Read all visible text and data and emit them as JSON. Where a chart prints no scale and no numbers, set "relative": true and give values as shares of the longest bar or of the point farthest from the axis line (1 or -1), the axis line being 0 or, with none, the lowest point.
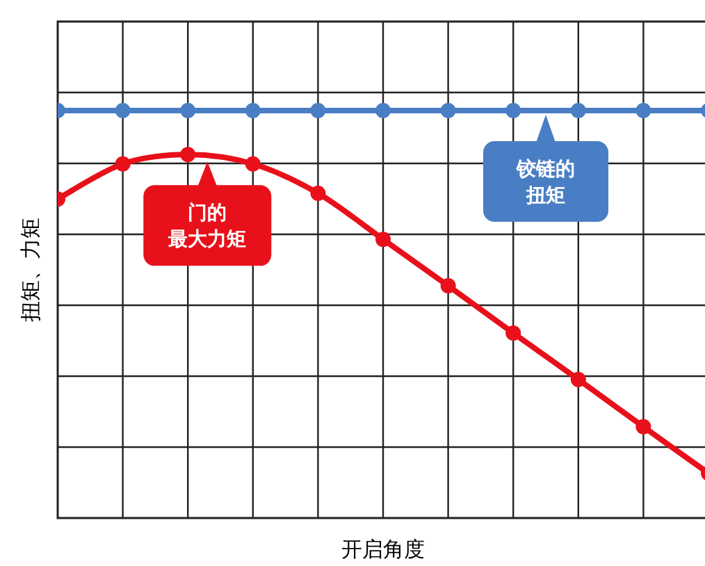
{
  "chart_data": {
    "type": "line",
    "relative": true,
    "xlabel": "开启角度",
    "ylabel": "扭矩、力矩",
    "categories": [
      null,
      null,
      null,
      null,
      null,
      null,
      null,
      null,
      null,
      null,
      null
    ],
    "grid": true,
    "marker": "circle",
    "line_style": "solid",
    "series": [
      {
        "color": "#4a7ec4",
        "values": [
          1,
          1,
          1,
          1,
          1,
          1,
          1,
          1,
          1,
          1,
          1
        ]
      },
      {
        "color": "#e8101a",
        "values": [
          0.783,
          0.869,
          0.892,
          0.869,
          0.797,
          0.684,
          0.57,
          0.454,
          0.34,
          0.224,
          0.11
        ]
      }
    ],
    "annotations": [
      "铰链的扭矩",
      "门的最大力矩"
    ]
  }
}
